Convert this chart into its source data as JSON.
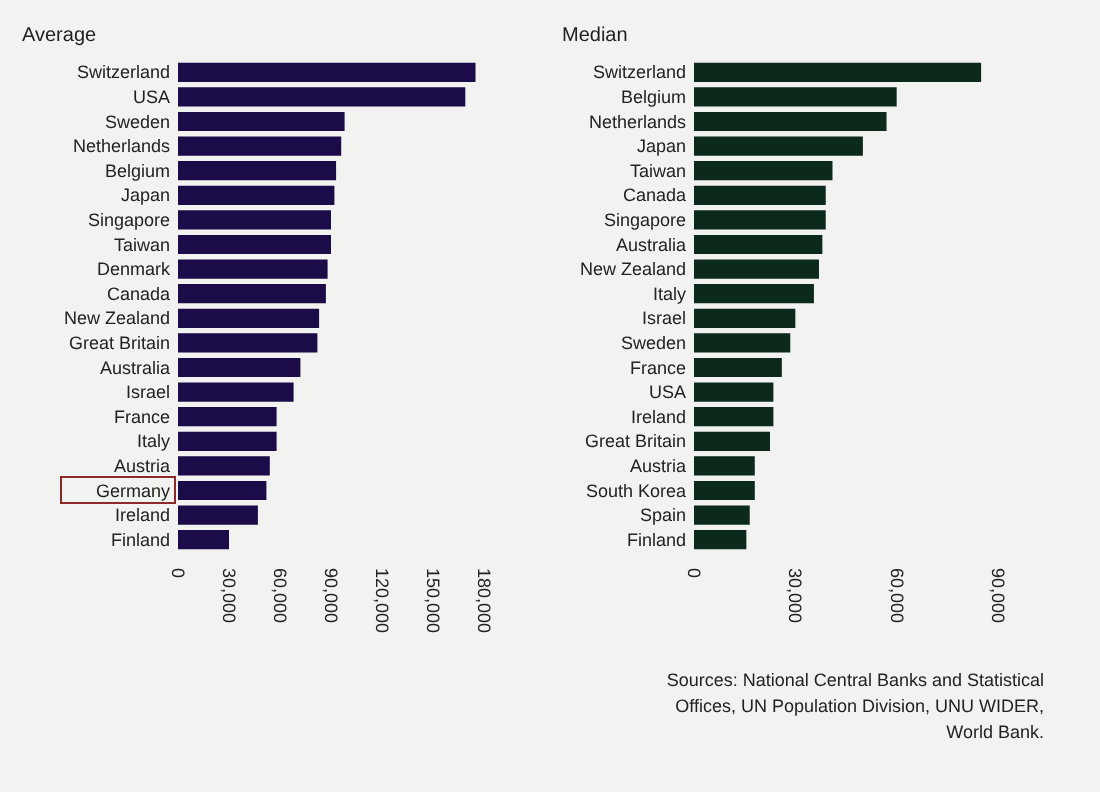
{
  "chart_data": [
    {
      "type": "bar",
      "orientation": "horizontal",
      "title": "Average",
      "categories": [
        "Switzerland",
        "USA",
        "Sweden",
        "Netherlands",
        "Belgium",
        "Japan",
        "Singapore",
        "Taiwan",
        "Denmark",
        "Canada",
        "New Zealand",
        "Great Britain",
        "Australia",
        "Israel",
        "France",
        "Italy",
        "Austria",
        "Germany",
        "Ireland",
        "Finland"
      ],
      "values": [
        175000,
        169000,
        98000,
        96000,
        93000,
        92000,
        90000,
        90000,
        88000,
        87000,
        83000,
        82000,
        72000,
        68000,
        58000,
        58000,
        54000,
        52000,
        47000,
        30000
      ],
      "color": "#1b0b48",
      "xlim": [
        0,
        180000
      ],
      "xticks": [
        {
          "value": 0,
          "label": "0"
        },
        {
          "value": 30000,
          "label": "30,000"
        },
        {
          "value": 60000,
          "label": "60,000"
        },
        {
          "value": 90000,
          "label": "90,000"
        },
        {
          "value": 120000,
          "label": "120,000"
        },
        {
          "value": 150000,
          "label": "150,000"
        },
        {
          "value": 180000,
          "label": "180,000"
        }
      ],
      "grid": false
    },
    {
      "type": "bar",
      "orientation": "horizontal",
      "title": "Median",
      "categories": [
        "Switzerland",
        "Belgium",
        "Netherlands",
        "Japan",
        "Taiwan",
        "Canada",
        "Singapore",
        "Australia",
        "New Zealand",
        "Italy",
        "Israel",
        "Sweden",
        "France",
        "USA",
        "Ireland",
        "Great Britain",
        "Austria",
        "South Korea",
        "Spain",
        "Finland"
      ],
      "values": [
        85000,
        60000,
        57000,
        50000,
        41000,
        39000,
        39000,
        38000,
        37000,
        35500,
        30000,
        28500,
        26000,
        23500,
        23500,
        22500,
        18000,
        18000,
        16500,
        15500
      ],
      "color": "#0b2a1c",
      "xlim": [
        0,
        90000
      ],
      "xticks": [
        {
          "value": 0,
          "label": "0"
        },
        {
          "value": 30000,
          "label": "30,000"
        },
        {
          "value": 60000,
          "label": "60,000"
        },
        {
          "value": 90000,
          "label": "90,000"
        }
      ],
      "grid": false,
      "annotations": [
        "Sources: National Central Banks and Statistical Offices, UN Population Division, UNU WIDER, World Bank."
      ]
    }
  ]
}
